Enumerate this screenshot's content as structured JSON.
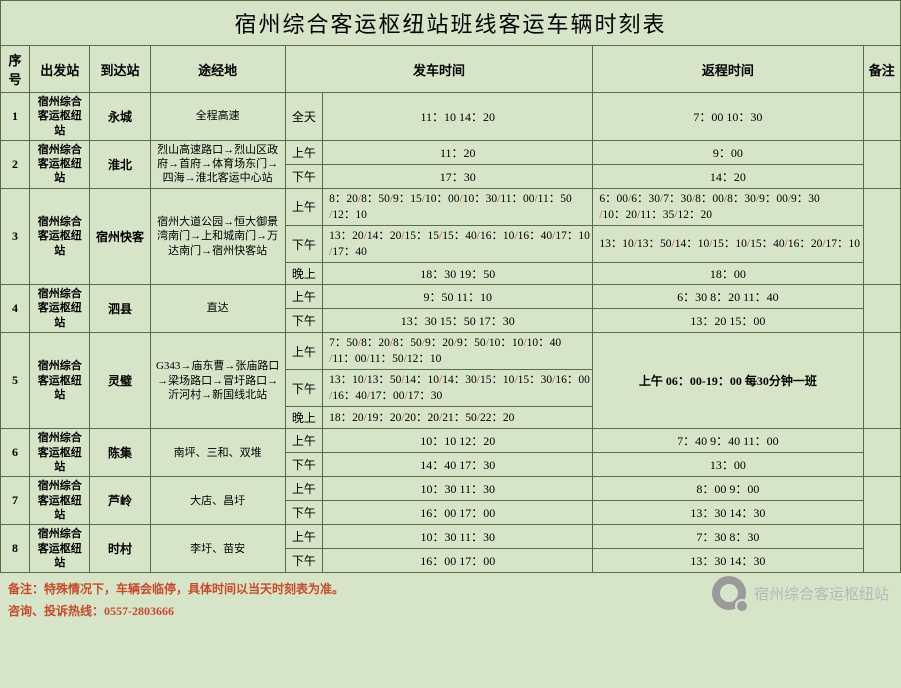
{
  "title": "宿州综合客运枢纽站班线客运车辆时刻表",
  "headers": {
    "seq": "序号",
    "depart_station": "出发站",
    "arrive_station": "到达站",
    "via": "途经地",
    "depart_time": "发车时间",
    "return_time": "返程时间",
    "note": "备注"
  },
  "origin": "宿州综合客运枢纽站",
  "rows": [
    {
      "seq": "1",
      "arr": "永城",
      "via": "全程高速",
      "periods": [
        {
          "p": "全天",
          "dep": "11：10      14：20",
          "ret": "7：00      10：30",
          "center": true
        }
      ]
    },
    {
      "seq": "2",
      "arr": "淮北",
      "via": "烈山高速路口→烈山区政府→首府→体育场东门→四海→淮北客运中心站",
      "periods": [
        {
          "p": "上午",
          "dep": "11：20",
          "ret": "9：00",
          "center": true
        },
        {
          "p": "下午",
          "dep": "17：30",
          "ret": "14：20",
          "center": true
        }
      ]
    },
    {
      "seq": "3",
      "arr": "宿州快客",
      "via": "宿州大道公园→恒大御景湾南门→上和城南门→万达南门→宿州快客站",
      "periods": [
        {
          "p": "上午",
          "dep_slashed": [
            "8：20",
            "8：50",
            "9：15",
            "10：00",
            "10：30",
            "11：00",
            "11：50",
            "12：10"
          ],
          "ret_slashed": [
            "6：00",
            "6：30",
            "7：30",
            "8：00",
            "8：30",
            "9：00",
            "9：30",
            "10：20",
            "11：35",
            "12：20"
          ]
        },
        {
          "p": "下午",
          "dep_slashed": [
            "13：20",
            "14：20",
            "15：15",
            "15：40",
            "16：10",
            "16：40",
            "17：10",
            "17：40"
          ],
          "ret_slashed": [
            "13：10",
            "13：50",
            "14：10",
            "15：10",
            "15：40",
            "16：20",
            "17：10"
          ]
        },
        {
          "p": "晚上",
          "dep": "18：30     19：50",
          "ret": "18：00",
          "center": true
        }
      ]
    },
    {
      "seq": "4",
      "arr": "泗县",
      "via": "直达",
      "periods": [
        {
          "p": "上午",
          "dep": "9：50     11：10",
          "ret": "6：30      8：20      11：40",
          "center": true
        },
        {
          "p": "下午",
          "dep": "13：30   15：50    17：30",
          "ret": "13：20     15：00",
          "center": true
        }
      ]
    },
    {
      "seq": "5",
      "arr": "灵璧",
      "via": "G343→庙东曹→张庙路口→梁场路口→冒圩路口→沂河村→新国线北站",
      "ret_merged": "上午 06：00-19：00 每30分钟一班",
      "periods": [
        {
          "p": "上午",
          "dep_slashed": [
            "7：50",
            "8：20",
            "8：50",
            "9：20",
            "9：50",
            "10：10",
            "10：40",
            "11：00",
            "11：50",
            "12：10"
          ]
        },
        {
          "p": "下午",
          "dep_slashed": [
            "13：10",
            "13：50",
            "14：10",
            "14：30",
            "15：10",
            "15：30",
            "16：00",
            "16：40",
            "17：00",
            "17：30"
          ]
        },
        {
          "p": "晚上",
          "dep_slashed": [
            "18：20",
            "19：20",
            "20：20",
            "21：50",
            "22：20"
          ]
        }
      ]
    },
    {
      "seq": "6",
      "arr": "陈集",
      "via": "南坪、三和、双堆",
      "periods": [
        {
          "p": "上午",
          "dep": "10：10       12：20",
          "ret": "7：40      9：40       11：00",
          "center": true
        },
        {
          "p": "下午",
          "dep": "14：40     17：30",
          "ret": "13：00",
          "center": true
        }
      ]
    },
    {
      "seq": "7",
      "arr": "芦岭",
      "via": "大店、昌圩",
      "periods": [
        {
          "p": "上午",
          "dep": "10：30       11：30",
          "ret": "8：00       9：00",
          "center": true
        },
        {
          "p": "下午",
          "dep": "16：00       17：00",
          "ret": "13：30       14：30",
          "center": true
        }
      ]
    },
    {
      "seq": "8",
      "arr": "时村",
      "via": "李圩、苗安",
      "periods": [
        {
          "p": "上午",
          "dep": "10：30      11：30",
          "ret": "7：30       8：30",
          "center": true
        },
        {
          "p": "下午",
          "dep": "16：00      17：00",
          "ret": "13：30       14：30",
          "center": true
        }
      ]
    }
  ],
  "footer": {
    "note_label": "备注：",
    "note_text": "特殊情况下，车辆会临停，具体时间以当天时刻表为准。",
    "hotline_label": "咨询、投诉热线：",
    "hotline": "0557-2803666"
  },
  "watermark": "宿州综合客运枢纽站",
  "colors": {
    "bg": "#d6e4c8",
    "border": "#5a6b4a",
    "accent": "#c94a2a"
  }
}
